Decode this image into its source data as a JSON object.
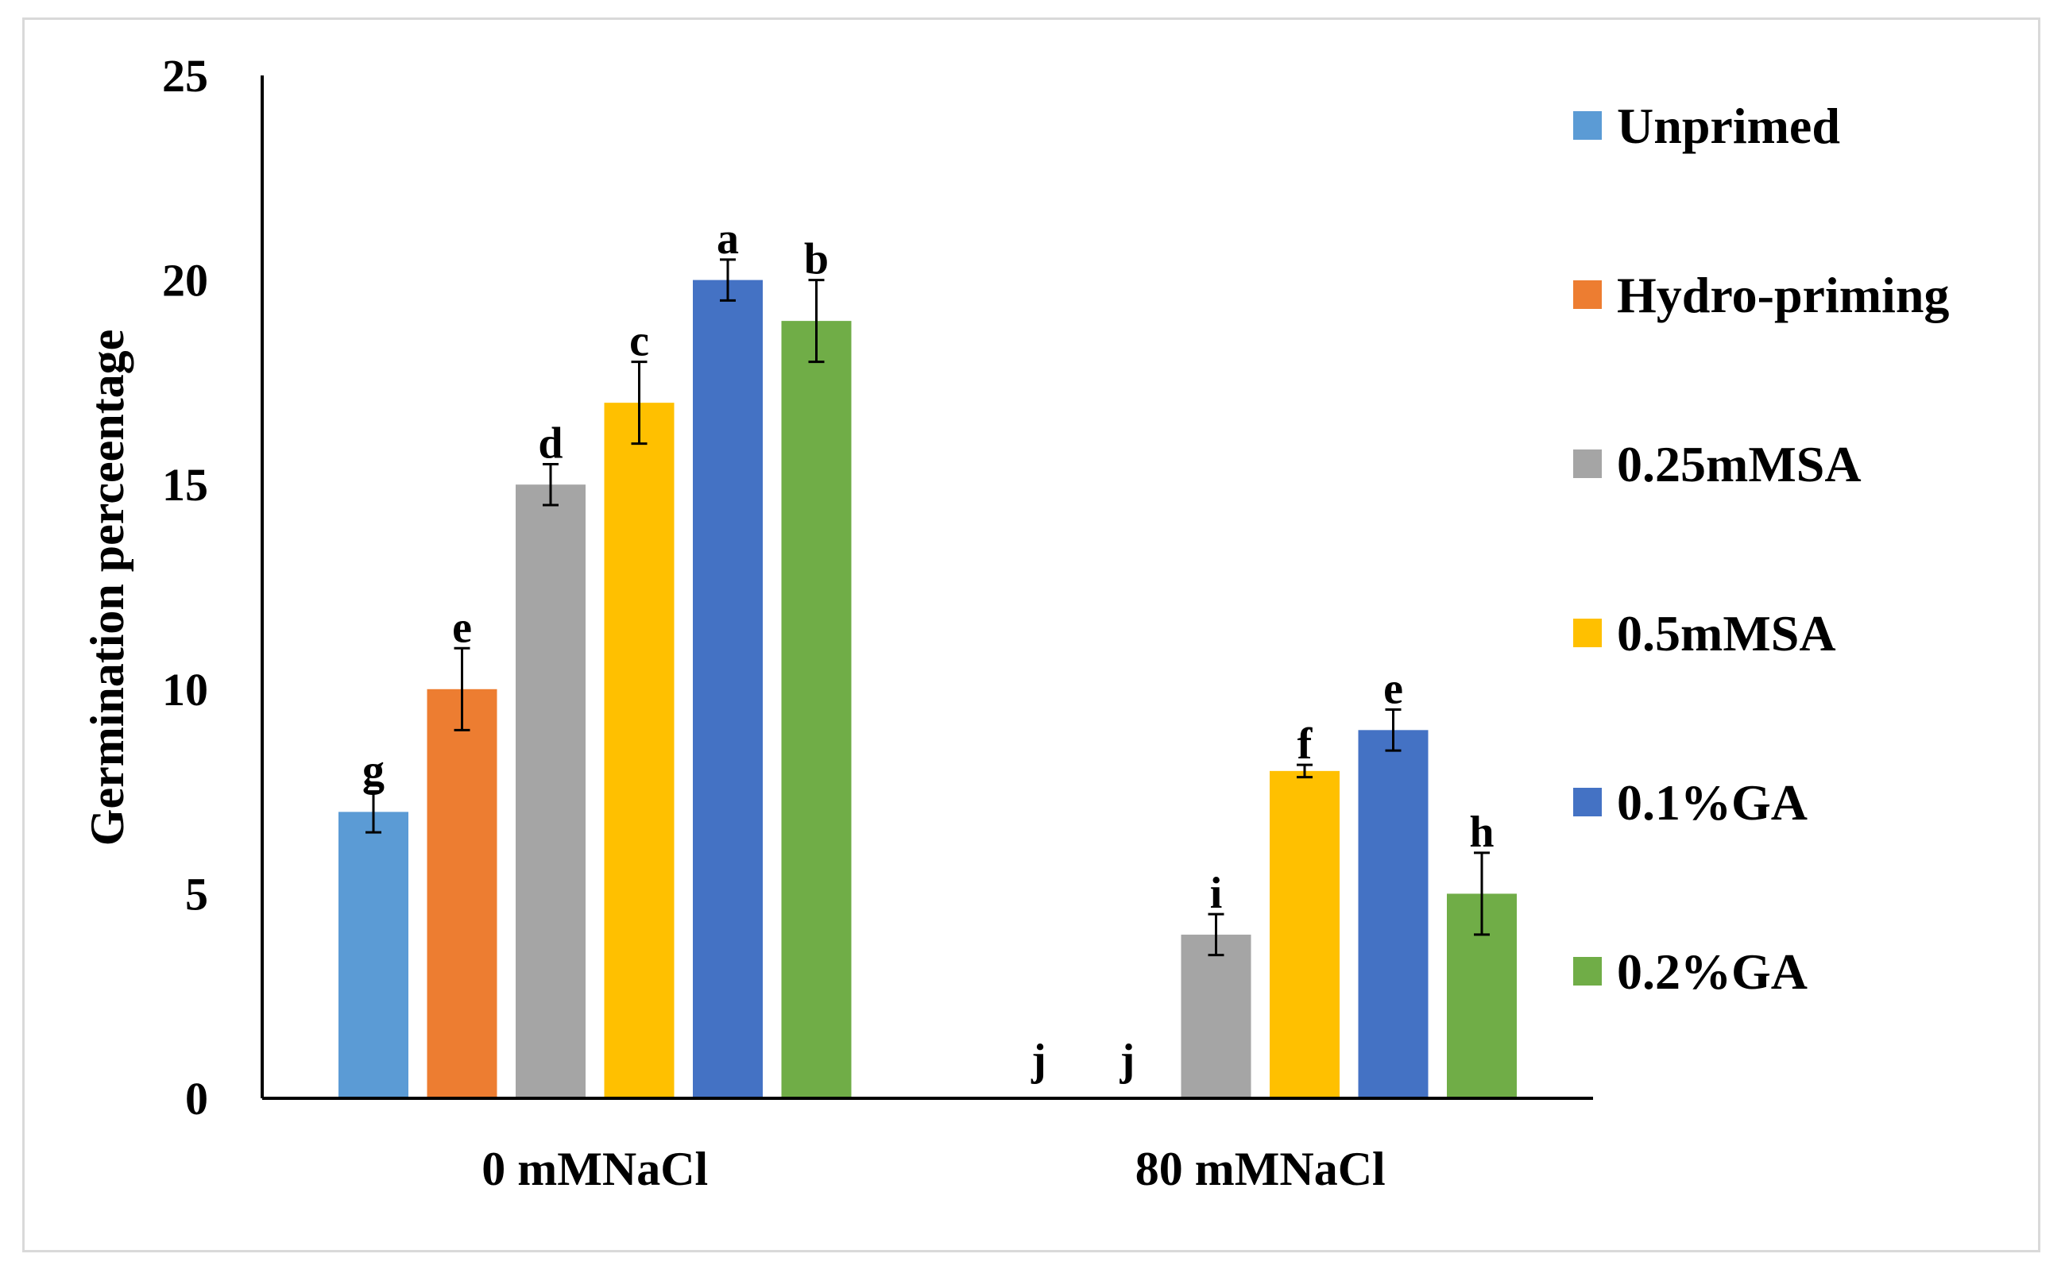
{
  "chart_data": {
    "type": "bar",
    "title": "",
    "xlabel": "",
    "ylabel": "Germination  perceentage",
    "ylim": [
      0,
      25
    ],
    "yticks": [
      0,
      5,
      10,
      15,
      20,
      25
    ],
    "grid": false,
    "legend_position": "right",
    "categories": [
      "0 mMNaCl",
      "80 mMNaCl"
    ],
    "series": [
      {
        "name": "Unprimed",
        "color": "#5b9bd5",
        "values": [
          7,
          0
        ],
        "errors": [
          0.5,
          0
        ],
        "labels": [
          "g",
          "j"
        ]
      },
      {
        "name": "Hydro-priming",
        "color": "#ed7d31",
        "values": [
          10,
          0
        ],
        "errors": [
          1.0,
          0
        ],
        "labels": [
          "e",
          "j"
        ]
      },
      {
        "name": "0.25mMSA",
        "color": "#a5a5a5",
        "values": [
          15,
          4
        ],
        "errors": [
          0.5,
          0.5
        ],
        "labels": [
          "d",
          "i"
        ]
      },
      {
        "name": "0.5mMSA",
        "color": "#ffc000",
        "values": [
          17,
          8
        ],
        "errors": [
          1.0,
          0.15
        ],
        "labels": [
          "c",
          "f"
        ]
      },
      {
        "name": "0.1%GA",
        "color": "#4472c4",
        "values": [
          20,
          9
        ],
        "errors": [
          0.5,
          0.5
        ],
        "labels": [
          "a",
          "e"
        ]
      },
      {
        "name": "0.2%GA",
        "color": "#70ad47",
        "values": [
          19,
          5
        ],
        "errors": [
          1.0,
          1.0
        ],
        "labels": [
          "b",
          "h"
        ]
      }
    ]
  }
}
